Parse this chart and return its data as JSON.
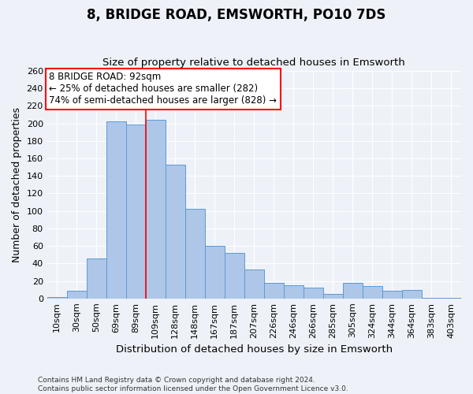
{
  "title": "8, BRIDGE ROAD, EMSWORTH, PO10 7DS",
  "subtitle": "Size of property relative to detached houses in Emsworth",
  "xlabel": "Distribution of detached houses by size in Emsworth",
  "ylabel": "Number of detached properties",
  "bar_labels": [
    "10sqm",
    "30sqm",
    "50sqm",
    "69sqm",
    "89sqm",
    "109sqm",
    "128sqm",
    "148sqm",
    "167sqm",
    "187sqm",
    "207sqm",
    "226sqm",
    "246sqm",
    "266sqm",
    "285sqm",
    "305sqm",
    "324sqm",
    "344sqm",
    "364sqm",
    "383sqm",
    "403sqm"
  ],
  "bar_values": [
    2,
    9,
    46,
    202,
    199,
    204,
    153,
    102,
    60,
    52,
    33,
    18,
    15,
    12,
    5,
    18,
    14,
    9,
    10,
    1,
    1
  ],
  "bar_color": "#aec6e8",
  "bar_edge_color": "#5b9bd5",
  "marker_bin_index": 4,
  "marker_color": "red",
  "annotation_title": "8 BRIDGE ROAD: 92sqm",
  "annotation_line1": "← 25% of detached houses are smaller (282)",
  "annotation_line2": "74% of semi-detached houses are larger (828) →",
  "annotation_box_color": "white",
  "annotation_box_edge_color": "red",
  "ylim": [
    0,
    260
  ],
  "yticks": [
    0,
    20,
    40,
    60,
    80,
    100,
    120,
    140,
    160,
    180,
    200,
    220,
    240,
    260
  ],
  "footer_line1": "Contains HM Land Registry data © Crown copyright and database right 2024.",
  "footer_line2": "Contains public sector information licensed under the Open Government Licence v3.0.",
  "bg_color": "#eef2f8",
  "grid_color": "#ffffff",
  "title_fontsize": 12,
  "subtitle_fontsize": 9.5,
  "xlabel_fontsize": 9.5,
  "ylabel_fontsize": 9,
  "tick_fontsize": 8,
  "annotation_fontsize": 8.5,
  "footer_fontsize": 6.5
}
